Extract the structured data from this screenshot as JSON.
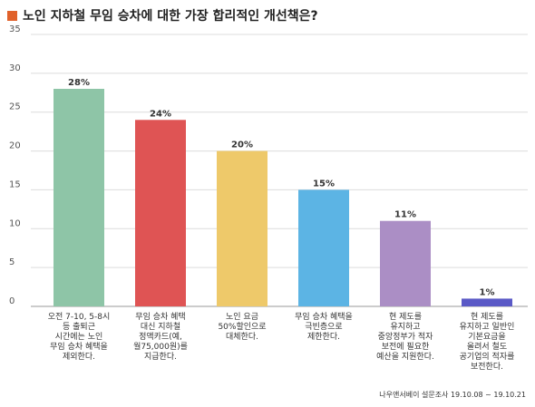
{
  "title": "노인 지하철 무임 승차에 대한 가장 합리적인 개선책은?",
  "source": "나우앤서베이 설문조사 19.10.08 ~ 19.10.21",
  "colors": {
    "title_square": "#e0612a",
    "grid": "#dcdcdc",
    "axis": "#9a9a9a"
  },
  "chart_data": {
    "type": "bar",
    "title": "노인 지하철 무임 승차에 대한 가장 합리적인 개선책은?",
    "xlabel": "",
    "ylabel": "",
    "ylim": [
      0,
      35
    ],
    "yticks": [
      0,
      5,
      10,
      15,
      20,
      25,
      30,
      35
    ],
    "grid": true,
    "legend": "none",
    "categories": [
      [
        "오전 7-10, 5-8시",
        "등 출퇴근",
        "시간에는 노인",
        "무임 승차 혜택을",
        "제외한다."
      ],
      [
        "무임 승차 혜택",
        "대신 지하철",
        "정액카드(예,",
        "월75,000원)를",
        "지급한다."
      ],
      [
        "노인 요금",
        "50%할인으로",
        "대체한다."
      ],
      [
        "무임 승차 혜택을",
        "극빈층으로",
        "제한한다."
      ],
      [
        "현 제도를",
        "유지하고",
        "중앙정부가 적자",
        "보전에 필요한",
        "예산을 지원한다."
      ],
      [
        "현 제도를",
        "유지하고 일반인",
        "기본요금을",
        "올려서 철도",
        "공기업의 적자를",
        "보전한다."
      ]
    ],
    "values": [
      28,
      24,
      20,
      15,
      11,
      1
    ],
    "value_labels": [
      "28%",
      "24%",
      "20%",
      "15%",
      "11%",
      "1%"
    ],
    "bar_colors": [
      "#8ec5a7",
      "#df5454",
      "#eec96a",
      "#5cb4e4",
      "#ab8ec5",
      "#5a59c6"
    ]
  }
}
